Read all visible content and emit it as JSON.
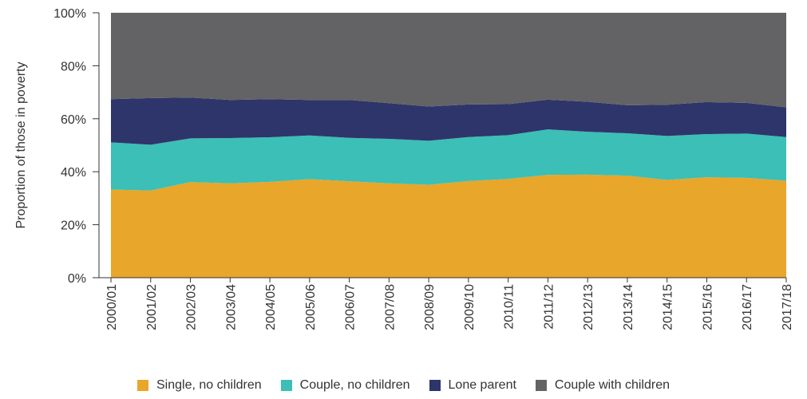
{
  "chart_data": {
    "type": "area",
    "stacked": true,
    "x_categories": [
      "2000/01",
      "2001/02",
      "2002/03",
      "2003/04",
      "2004/05",
      "2005/06",
      "2006/07",
      "2007/08",
      "2008/09",
      "2009/10",
      "2010/11",
      "2011/12",
      "2012/13",
      "2013/14",
      "2014/15",
      "2015/16",
      "2016/17",
      "2017/18"
    ],
    "series": [
      {
        "name": "Single, no children",
        "color": "#E8A62A",
        "values": [
          33.3,
          32.9,
          36.1,
          35.6,
          36.2,
          37.2,
          36.4,
          35.6,
          35.1,
          36.5,
          37.3,
          38.8,
          38.9,
          38.5,
          36.9,
          37.9,
          37.7,
          36.6
        ]
      },
      {
        "name": "Couple, no children",
        "color": "#3BBFB6",
        "values": [
          17.8,
          17.3,
          16.5,
          17.1,
          16.8,
          16.5,
          16.4,
          16.8,
          16.6,
          16.6,
          16.5,
          17.2,
          16.2,
          16.0,
          16.6,
          16.3,
          16.7,
          16.5
        ]
      },
      {
        "name": "Lone parent",
        "color": "#2E356A",
        "values": [
          16.3,
          17.6,
          15.4,
          14.4,
          14.4,
          13.4,
          14.3,
          13.5,
          12.9,
          12.3,
          11.7,
          11.2,
          11.3,
          10.6,
          11.8,
          12.1,
          11.6,
          11.2
        ]
      },
      {
        "name": "Couple with children",
        "color": "#636365",
        "values": [
          32.6,
          32.2,
          32.0,
          32.9,
          32.6,
          32.9,
          32.9,
          34.1,
          35.4,
          34.6,
          34.5,
          32.8,
          33.6,
          34.9,
          34.7,
          33.7,
          34.0,
          35.7
        ]
      }
    ],
    "y_axis": {
      "title": "Proportion of those in poverty",
      "range": [
        0,
        100
      ],
      "ticks": [
        "0%",
        "20%",
        "40%",
        "60%",
        "80%",
        "100%"
      ]
    },
    "x_label_rotation": "vertical",
    "grid": false,
    "legend_position": "bottom"
  }
}
